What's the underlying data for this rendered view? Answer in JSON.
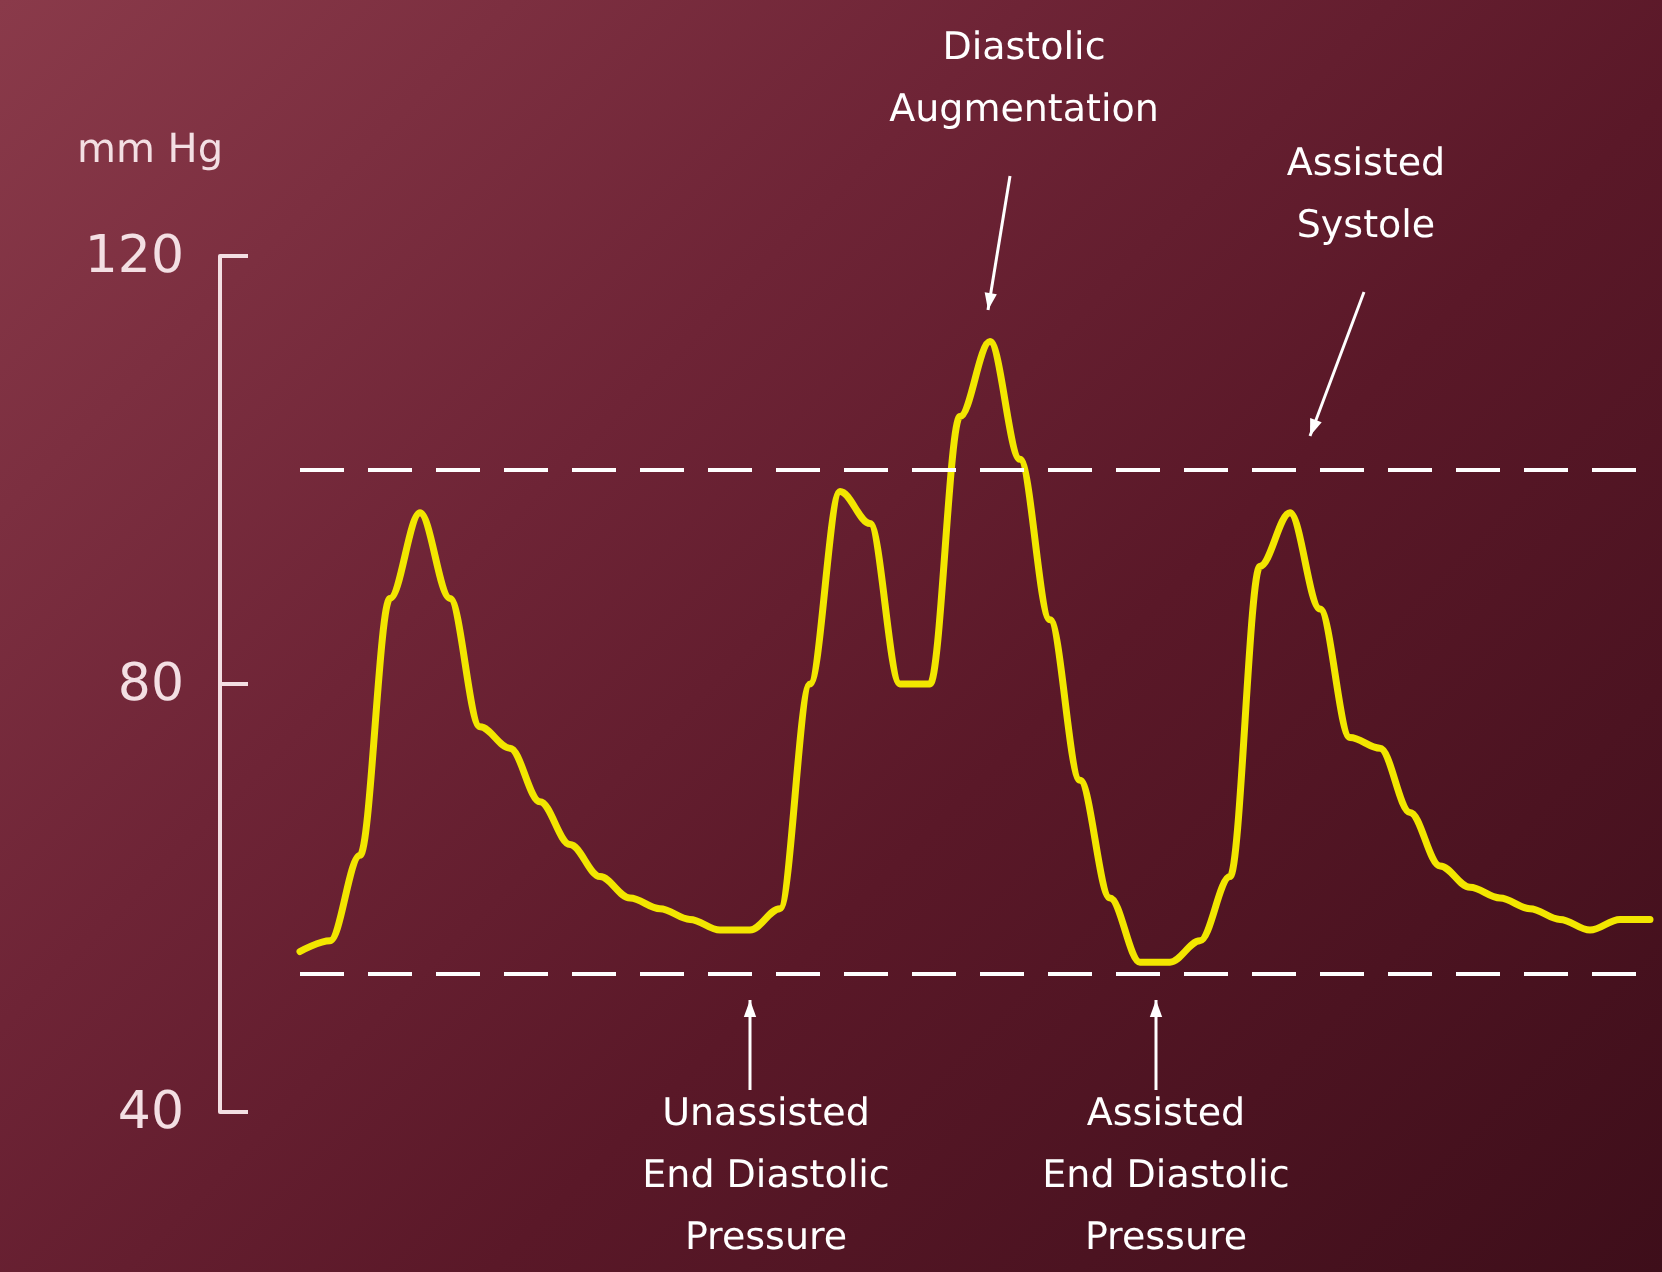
{
  "chart_data": {
    "type": "line",
    "ylabel": "mm Hg",
    "categories": [
      null,
      null,
      null,
      null,
      null,
      null,
      null,
      null,
      null,
      null,
      null,
      null,
      null,
      null,
      null,
      null,
      null,
      null,
      null,
      null,
      null,
      null,
      null,
      null,
      null,
      null,
      null,
      null,
      null,
      null,
      null,
      null,
      null,
      null,
      null,
      null,
      null,
      null,
      null,
      null,
      null,
      null,
      null,
      null,
      null,
      null
    ],
    "series": [
      {
        "color": "#f2e600",
        "values": [
          55,
          56,
          64,
          88,
          96,
          88,
          76,
          74,
          69,
          65,
          62,
          60,
          59,
          58,
          57,
          57,
          59,
          80,
          98,
          95,
          80,
          80,
          105,
          112,
          101,
          86,
          71,
          60,
          54,
          54,
          56,
          62,
          91,
          96,
          87,
          75,
          74,
          68,
          63,
          61,
          60,
          59,
          58,
          57,
          58,
          58
        ]
      }
    ],
    "ylim": [
      40,
      120
    ],
    "yticks": [
      40,
      80,
      120
    ],
    "tick_labels": "y",
    "grid": false,
    "marker": "none",
    "line_style": "solid",
    "ref_lines": [
      {
        "axis": "y",
        "value": 100,
        "color": "#ffffff",
        "line_style": "dashed"
      },
      {
        "axis": "y",
        "value": 53,
        "color": "#ffffff",
        "line_style": "dashed"
      }
    ],
    "annotations": [
      "Diastolic\nAugmentation",
      "Assisted\nSystole",
      "Unassisted\nEnd Diastolic\nPressure",
      "Assisted\nEnd Diastolic\nPressure"
    ]
  }
}
